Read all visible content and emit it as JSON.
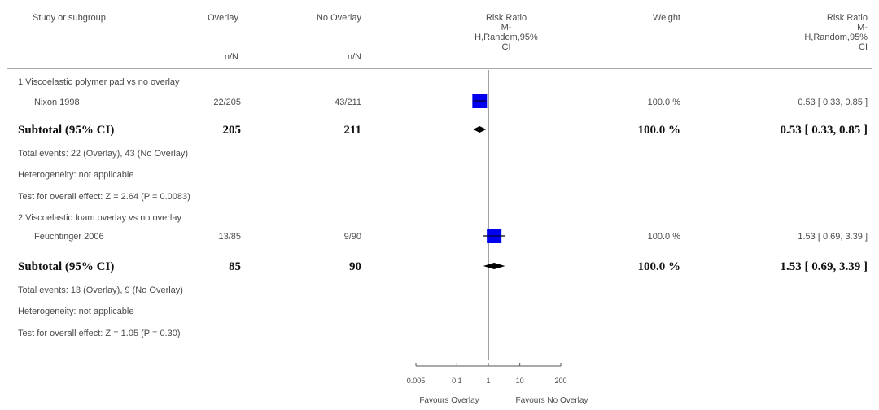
{
  "headers": {
    "study": "Study or subgroup",
    "overlay": "Overlay",
    "overlay_sub": "n/N",
    "no_overlay": "No Overlay",
    "no_overlay_sub": "n/N",
    "rr_plot_1": "Risk Ratio",
    "rr_plot_2": "M-",
    "rr_plot_3": "H,Random,95%",
    "rr_plot_4": "CI",
    "weight": "Weight",
    "rr_text_1": "Risk Ratio",
    "rr_text_2": "M-",
    "rr_text_3": "H,Random,95%",
    "rr_text_4": "CI"
  },
  "groups": [
    {
      "title": "1 Viscoelastic polymer pad vs no overlay",
      "study": {
        "name": "Nixon 1998",
        "overlay": "22/205",
        "no_overlay": "43/211",
        "weight": "100.0 %",
        "rr": "0.53 [ 0.33, 0.85 ]"
      },
      "subtotal": {
        "label": "Subtotal (95% CI)",
        "overlay": "205",
        "no_overlay": "211",
        "weight": "100.0 %",
        "rr": "0.53 [ 0.33, 0.85 ]"
      },
      "total_events": "Total events: 22 (Overlay), 43 (No Overlay)",
      "heterogeneity": "Heterogeneity: not applicable",
      "overall_effect": "Test for overall effect: Z = 2.64 (P = 0.0083)"
    },
    {
      "title": "2 Viscoelastic foam overlay vs no overlay",
      "study": {
        "name": "Feuchtinger 2006",
        "overlay": "13/85",
        "no_overlay": "9/90",
        "weight": "100.0 %",
        "rr": "1.53 [ 0.69, 3.39 ]"
      },
      "subtotal": {
        "label": "Subtotal (95% CI)",
        "overlay": "85",
        "no_overlay": "90",
        "weight": "100.0 %",
        "rr": "1.53 [ 0.69, 3.39 ]"
      },
      "total_events": "Total events: 13 (Overlay), 9 (No Overlay)",
      "heterogeneity": "Heterogeneity: not applicable",
      "overall_effect": "Test for overall effect: Z = 1.05 (P = 0.30)"
    }
  ],
  "axis": {
    "ticks": [
      "0.005",
      "0.1",
      "1",
      "10",
      "200"
    ],
    "favours_left": "Favours Overlay",
    "favours_right": "Favours No Overlay"
  },
  "colors": {
    "square": "#0000ee",
    "diamond": "#000000",
    "line": "#444444"
  },
  "chart_data": {
    "type": "forest",
    "scale": "log",
    "xlim": [
      0.005,
      200
    ],
    "tick_values": [
      0.005,
      0.1,
      1,
      10,
      200
    ],
    "studies": [
      {
        "name": "Nixon 1998",
        "rr": 0.53,
        "ci": [
          0.33,
          0.85
        ],
        "weight": 100.0
      },
      {
        "name": "Feuchtinger 2006",
        "rr": 1.53,
        "ci": [
          0.69,
          3.39
        ],
        "weight": 100.0
      }
    ],
    "subtotals": [
      {
        "label": "Subtotal (95% CI)",
        "rr": 0.53,
        "ci": [
          0.33,
          0.85
        ]
      },
      {
        "label": "Subtotal (95% CI)",
        "rr": 1.53,
        "ci": [
          0.69,
          3.39
        ]
      }
    ]
  }
}
